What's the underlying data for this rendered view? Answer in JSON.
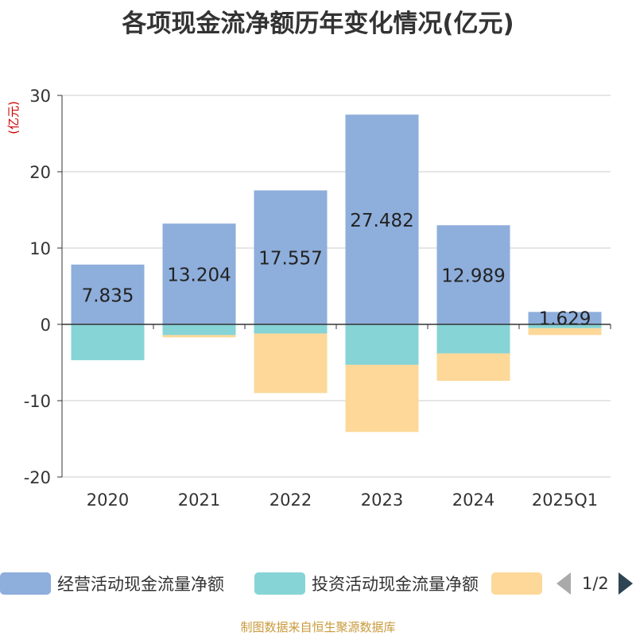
{
  "title": "各项现金流净额历年变化情况(亿元)",
  "source": "制图数据来自恒生聚源数据库",
  "legend": {
    "items": [
      {
        "label": "经营活动现金流量净额",
        "color": "#8eaedb"
      },
      {
        "label": "投资活动现金流量净额",
        "color": "#86d4d6"
      },
      {
        "label": "",
        "color": "#fdd899"
      }
    ],
    "page": "1/2"
  },
  "chart_data": {
    "type": "bar",
    "stacked": true,
    "title": "各项现金流净额历年变化情况(亿元)",
    "ylabel": "(亿元)",
    "xlabel": "",
    "ylim": [
      -20,
      30
    ],
    "yticks": [
      -20,
      -10,
      0,
      10,
      20,
      30
    ],
    "categories": [
      "2020",
      "2021",
      "2022",
      "2023",
      "2024",
      "2025Q1"
    ],
    "series": [
      {
        "name": "经营活动现金流量净额",
        "color": "#8eaedb",
        "values": [
          7.835,
          13.204,
          17.557,
          27.482,
          12.989,
          1.629
        ],
        "labels": [
          "7.835",
          "13.204",
          "17.557",
          "27.482",
          "12.989",
          "1.629"
        ]
      },
      {
        "name": "投资活动现金流量净额",
        "color": "#86d4d6",
        "values": [
          -4.7,
          -1.4,
          -1.2,
          -5.3,
          -3.8,
          -0.5
        ]
      },
      {
        "name": "",
        "color": "#fdd899",
        "values": [
          0,
          -0.3,
          -7.8,
          -8.8,
          -3.6,
          -0.9
        ]
      }
    ]
  }
}
